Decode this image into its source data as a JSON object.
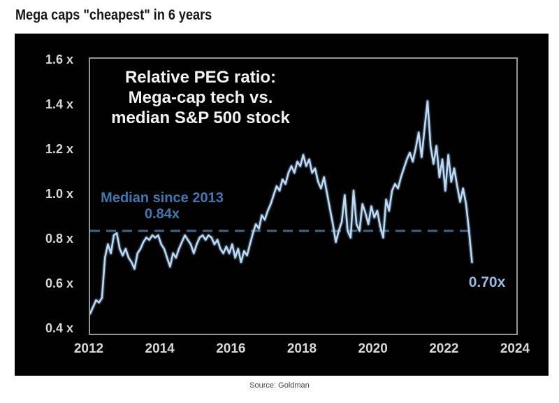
{
  "title": "Mega caps \"cheapest\" in 6 years",
  "source": "Source: Goldman",
  "chart_data": {
    "type": "line",
    "title_lines": [
      "Relative PEG ratio:",
      "Mega-cap tech vs.",
      "median S&P 500 stock"
    ],
    "xlabel": "",
    "ylabel": "",
    "xlim": [
      2012,
      2024
    ],
    "ylim": [
      0.38,
      1.61
    ],
    "x_ticks": [
      2012,
      2014,
      2016,
      2018,
      2020,
      2022,
      2024
    ],
    "x_tick_labels": [
      "2012",
      "2014",
      "2016",
      "2018",
      "2020",
      "2022",
      "2024"
    ],
    "y_ticks": [
      1.6,
      1.4,
      1.2,
      1.0,
      0.8,
      0.6,
      0.4
    ],
    "y_tick_labels": [
      "1.6 x",
      "1.4 x",
      "1.2 x",
      "1.0 x",
      "0.8 x",
      "0.6 x",
      "0.4 x"
    ],
    "grid": false,
    "background": "#010101",
    "median": {
      "label": "Median since 2013",
      "value_label": "0.84x",
      "value": 0.84,
      "line_color": "#456484",
      "text_color": "#4277b0"
    },
    "end_annotation": {
      "label": "0.70x",
      "value": 0.7,
      "text_color": "#97bce2"
    },
    "series": [
      {
        "name": "Relative PEG ratio: mega-cap tech vs. median S&P 500 stock",
        "color": "#bdd9f4",
        "x_start": 2012.0,
        "x_step_years": 0.0833333,
        "values": [
          0.47,
          0.5,
          0.53,
          0.52,
          0.54,
          0.72,
          0.78,
          0.74,
          0.82,
          0.83,
          0.76,
          0.73,
          0.76,
          0.72,
          0.7,
          0.67,
          0.74,
          0.76,
          0.79,
          0.81,
          0.8,
          0.82,
          0.81,
          0.82,
          0.78,
          0.76,
          0.72,
          0.68,
          0.74,
          0.72,
          0.76,
          0.79,
          0.82,
          0.8,
          0.78,
          0.74,
          0.78,
          0.81,
          0.82,
          0.8,
          0.82,
          0.81,
          0.78,
          0.8,
          0.76,
          0.74,
          0.77,
          0.74,
          0.78,
          0.72,
          0.76,
          0.7,
          0.75,
          0.73,
          0.78,
          0.83,
          0.87,
          0.85,
          0.91,
          0.89,
          0.93,
          0.96,
          1.0,
          1.04,
          1.02,
          1.07,
          1.05,
          1.1,
          1.13,
          1.1,
          1.15,
          1.13,
          1.18,
          1.13,
          1.16,
          1.1,
          1.12,
          1.06,
          1.03,
          1.08,
          1.01,
          0.94,
          0.87,
          0.79,
          0.84,
          0.88,
          1.0,
          0.84,
          0.81,
          1.02,
          0.87,
          0.84,
          0.96,
          0.92,
          0.87,
          0.95,
          0.9,
          0.93,
          0.86,
          0.81,
          0.98,
          0.93,
          1.02,
          1.05,
          1.03,
          1.08,
          1.12,
          1.16,
          1.19,
          1.15,
          1.21,
          1.28,
          1.17,
          1.3,
          1.42,
          1.22,
          1.14,
          1.22,
          1.08,
          1.16,
          1.02,
          1.18,
          1.06,
          1.12,
          1.04,
          0.97,
          1.03,
          0.96,
          0.84,
          0.7
        ]
      }
    ]
  }
}
